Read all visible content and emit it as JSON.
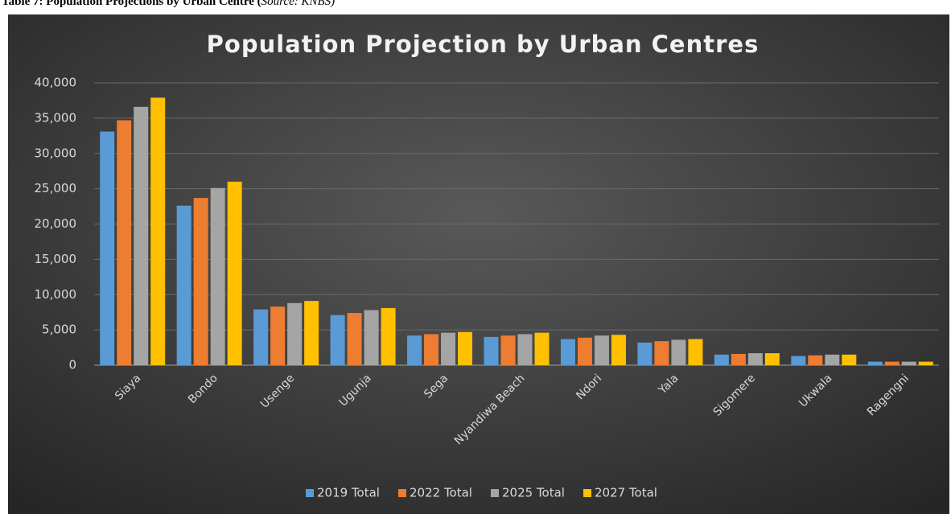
{
  "caption": {
    "label": "Table 7: Population Projections by Urban Centre (",
    "source": "Source: KNBS)"
  },
  "chart_data": {
    "type": "bar",
    "title": "Population Projection by Urban Centres",
    "categories": [
      "Siaya",
      "Bondo",
      "Usenge",
      "Ugunja",
      "Sega",
      "Nyandiwa Beach",
      "Ndori",
      "Yala",
      "Sigomere",
      "Ukwala",
      "Ragengni"
    ],
    "series": [
      {
        "name": "2019 Total",
        "color": "#5b9bd5",
        "values": [
          33100,
          22600,
          7900,
          7100,
          4200,
          4000,
          3700,
          3200,
          1500,
          1300,
          500
        ]
      },
      {
        "name": "2022 Total",
        "color": "#ed7d31",
        "values": [
          34700,
          23700,
          8300,
          7400,
          4400,
          4200,
          3900,
          3400,
          1600,
          1400,
          500
        ]
      },
      {
        "name": "2025 Total",
        "color": "#a5a5a5",
        "values": [
          36600,
          25100,
          8800,
          7800,
          4600,
          4400,
          4200,
          3600,
          1700,
          1500,
          500
        ]
      },
      {
        "name": "2027 Total",
        "color": "#ffc000",
        "values": [
          37900,
          26000,
          9100,
          8100,
          4700,
          4600,
          4300,
          3700,
          1700,
          1500,
          500
        ]
      }
    ],
    "ylim": [
      0,
      40000
    ],
    "yticks": [
      0,
      {
        "value": 5000,
        "label": "5,000"
      },
      {
        "value": 10000,
        "label": "10,000"
      },
      {
        "value": 15000,
        "label": "15,000"
      },
      {
        "value": 20000,
        "label": "20,000"
      },
      {
        "value": 25000,
        "label": "25,000"
      },
      {
        "value": 30000,
        "label": "30,000"
      },
      {
        "value": 35000,
        "label": "35,000"
      },
      {
        "value": 40000,
        "label": "40,000"
      }
    ],
    "grid": true,
    "legend": "bottom"
  }
}
